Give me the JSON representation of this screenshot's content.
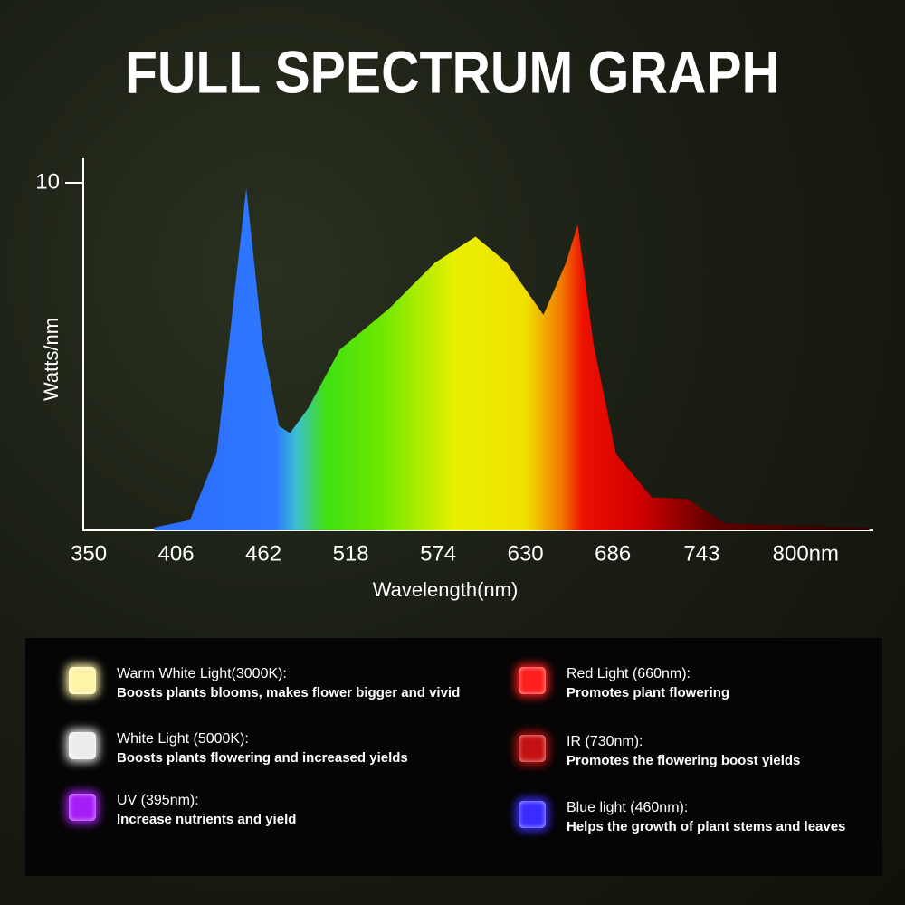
{
  "chart_data": {
    "type": "area",
    "title": "FULL SPECTRUM GRAPH",
    "x_label": "Wavelength(nm)",
    "y_label": "Watts/nm",
    "x": [
      392,
      415,
      432,
      451,
      461.5,
      472,
      479,
      490.5,
      511,
      543,
      572,
      598,
      618,
      641.5,
      656,
      663.5,
      673.5,
      688,
      711,
      734,
      757.5,
      850.5
    ],
    "values": [
      0.08,
      0.3,
      2.2,
      9.85,
      5.4,
      3.0,
      2.8,
      3.5,
      5.2,
      6.4,
      7.7,
      8.45,
      7.7,
      6.2,
      7.7,
      8.8,
      5.4,
      2.2,
      0.95,
      0.9,
      0.2,
      0.08
    ],
    "xlim": [
      346.5,
      853
    ],
    "ylim": [
      0,
      10.3
    ],
    "xticks": [
      350,
      406,
      462,
      518,
      574,
      630,
      686,
      743,
      {
        "value": 800,
        "label": "800nm"
      }
    ],
    "yticks": [
      10
    ]
  },
  "legend_items": [
    {
      "title": "Warm White Light(3000K):",
      "description": "Boosts plants blooms, makes flower bigger and vivid",
      "color": "#fff3a8"
    },
    {
      "title": "White Light (5000K):",
      "description": "Boosts plants flowering and increased yields",
      "color": "#ececec"
    },
    {
      "title": "UV (395nm):",
      "description": "Increase nutrients and yield",
      "color": "#a51ef5"
    },
    {
      "title": "Red Light (660nm):",
      "description": "Promotes plant flowering",
      "color": "#ff1f1f"
    },
    {
      "title": "IR (730nm):",
      "description": "Promotes the flowering boost yields",
      "color": "#c41212"
    },
    {
      "title": "Blue light (460nm):",
      "description": "Helps the growth of plant stems and leaves",
      "color": "#3a2cff"
    }
  ]
}
